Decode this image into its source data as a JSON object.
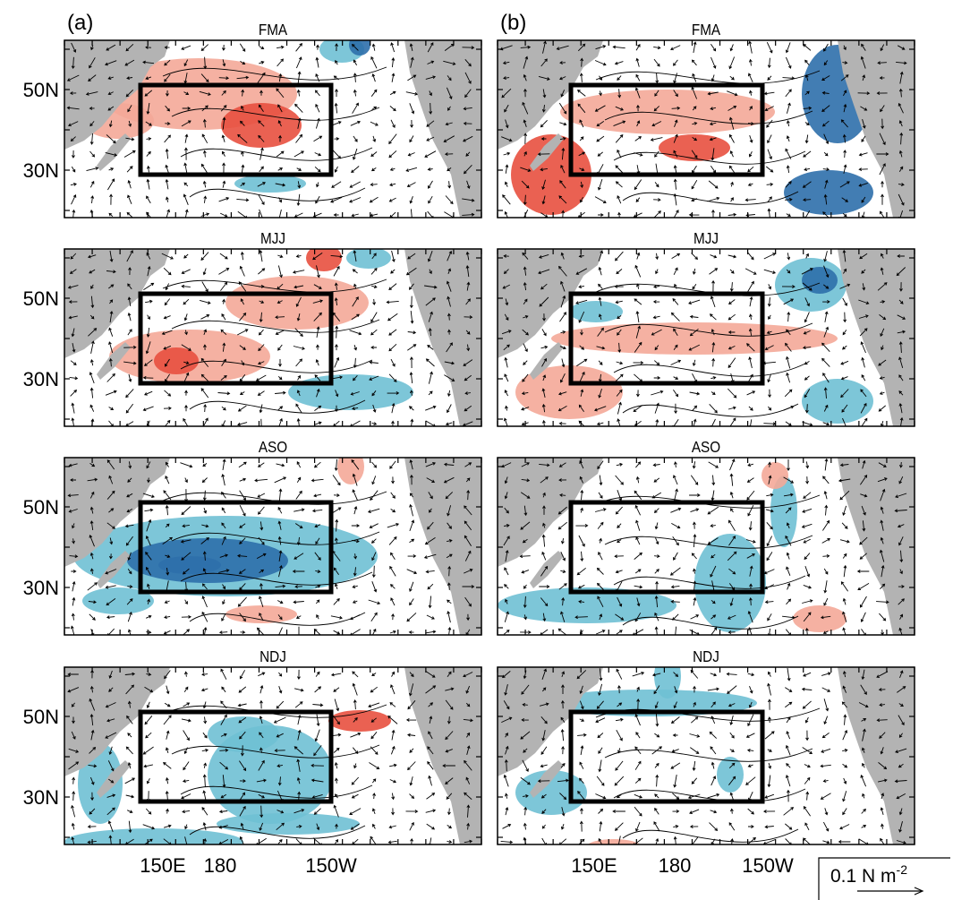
{
  "columns": [
    {
      "label": "(a)",
      "panels": [
        "FMA",
        "MJJ",
        "ASO",
        "NDJ"
      ]
    },
    {
      "label": "(b)",
      "panels": [
        "FMA",
        "MJJ",
        "ASO",
        "NDJ"
      ]
    }
  ],
  "y_axis_labels": [
    "50N",
    "30N"
  ],
  "x_axis_labels": [
    "150E",
    "180",
    "150W"
  ],
  "reference_vector": {
    "text": "0.1 N m",
    "exponent": "-2"
  }
}
